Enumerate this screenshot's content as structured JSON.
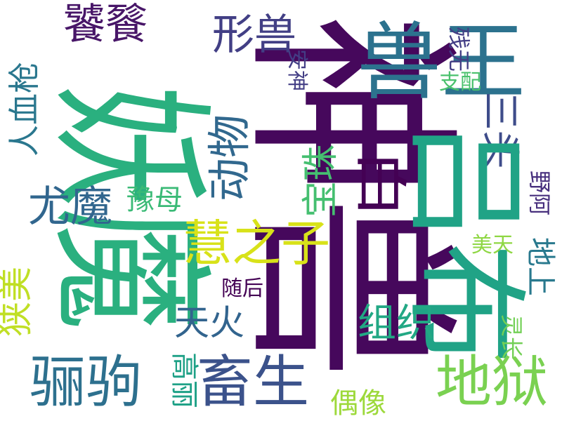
{
  "words": [
    {
      "text": "妖魔",
      "color": "#2ab07f"
    },
    {
      "text": "神兽",
      "color": "#46085c"
    },
    {
      "text": "兽王",
      "color": "#2c728e"
    },
    {
      "text": "饕餮",
      "color": "#481668"
    },
    {
      "text": "形兽",
      "color": "#423f85"
    },
    {
      "text": "残无",
      "color": "#433e85"
    },
    {
      "text": "人血枪",
      "color": "#2a778e"
    },
    {
      "text": "动物",
      "color": "#31688e"
    },
    {
      "text": "安神",
      "color": "#433e85"
    },
    {
      "text": "支配",
      "color": "#4ac16d"
    },
    {
      "text": "三头",
      "color": "#3e4c8a"
    },
    {
      "text": "尤魔",
      "color": "#31668e"
    },
    {
      "text": "豫母",
      "color": "#3aba76"
    },
    {
      "text": "宝珠",
      "color": "#45bf70"
    },
    {
      "text": "白",
      "color": "#440154"
    },
    {
      "text": "吕布",
      "color": "#20a386"
    },
    {
      "text": "野阿",
      "color": "#472f7d"
    },
    {
      "text": "慧之子",
      "color": "#d8e219"
    },
    {
      "text": "美天",
      "color": "#8fd744"
    },
    {
      "text": "地上",
      "color": "#29798e"
    },
    {
      "text": "狭美",
      "color": "#c0df25"
    },
    {
      "text": "随后",
      "color": "#440154"
    },
    {
      "text": "天火",
      "color": "#32648e"
    },
    {
      "text": "组织",
      "color": "#22a884"
    },
    {
      "text": "灵长",
      "color": "#73d056"
    },
    {
      "text": "骊驹",
      "color": "#2d708e"
    },
    {
      "text": "畜生",
      "color": "#3b528b"
    },
    {
      "text": "地狱",
      "color": "#7ad151"
    },
    {
      "text": "高丽",
      "color": "#1fa187"
    },
    {
      "text": "偶像",
      "color": "#9dd93b"
    }
  ]
}
